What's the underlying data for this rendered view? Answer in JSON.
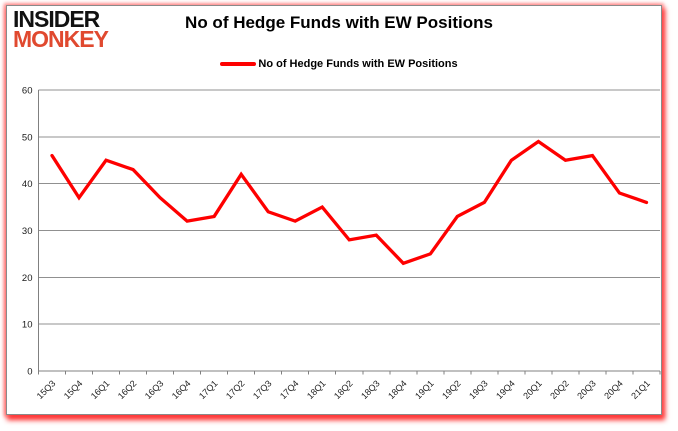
{
  "logo": {
    "line1": "INSIDER",
    "line2": "MONKEY"
  },
  "header": {
    "title": "No of Hedge Funds with EW Positions"
  },
  "legend": {
    "label": "No of Hedge Funds with EW Positions"
  },
  "colors": {
    "logo_black": "#111111",
    "logo_red": "#e0492f",
    "line": "#fe0000",
    "grid": "#909090",
    "axis": "#808080",
    "tick_text": "#1a1a1a",
    "frame_glow": "#ff0000"
  },
  "chart_data": {
    "type": "line",
    "title": "No of Hedge Funds with EW Positions",
    "categories": [
      "15Q3",
      "15Q4",
      "16Q1",
      "16Q2",
      "16Q3",
      "16Q4",
      "17Q1",
      "17Q2",
      "17Q3",
      "17Q4",
      "18Q1",
      "18Q2",
      "18Q3",
      "18Q4",
      "19Q1",
      "19Q2",
      "19Q3",
      "19Q4",
      "20Q1",
      "20Q2",
      "20Q3",
      "20Q4",
      "21Q1"
    ],
    "series": [
      {
        "name": "No of Hedge Funds with EW Positions",
        "color": "#fe0000",
        "values": [
          46,
          37,
          45,
          43,
          37,
          32,
          33,
          42,
          34,
          32,
          35,
          28,
          29,
          23,
          25,
          33,
          36,
          45,
          49,
          45,
          46,
          38,
          36
        ]
      }
    ],
    "xlabel": "",
    "ylabel": "",
    "ylim": [
      0,
      60
    ],
    "ytick_step": 10,
    "grid": true,
    "legend_position": "top-center"
  }
}
